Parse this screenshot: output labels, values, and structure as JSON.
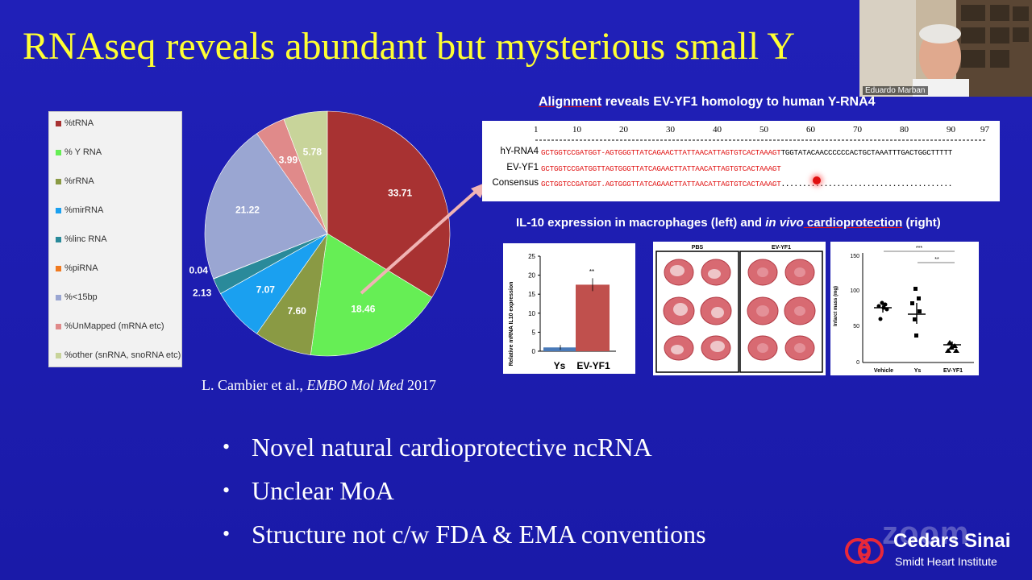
{
  "slide": {
    "title": "RNAseq reveals abundant but mysterious small Y",
    "citation_prefix": "L. Cambier et al., ",
    "citation_journal": "EMBO Mol Med",
    "citation_year": " 2017",
    "bullets": [
      "Novel natural cardioprotective ncRNA",
      "Unclear MoA",
      "Structure not c/w FDA & EMA conventions"
    ]
  },
  "colors": {
    "background": "#1c1cb0",
    "title": "#ffff33",
    "tRNA": "#a83232",
    "YRNA": "#66ee55",
    "rRNA": "#8a9a44",
    "mirRNA": "#1aa0f0",
    "lincRNA": "#2a8a9a",
    "piRNA": "#f07a20",
    "lt15bp": "#9aa6d2",
    "unmapped": "#e08a8a",
    "other": "#c8d49a"
  },
  "chart_data": {
    "type": "pie",
    "title": "",
    "legend_placement": "left",
    "slices": [
      {
        "name": "%tRNA",
        "value": 33.71,
        "label": "33.71",
        "color": "#a83232"
      },
      {
        "name": "% Y RNA",
        "value": 18.46,
        "label": "18.46",
        "color": "#66ee55"
      },
      {
        "name": "%rRNA",
        "value": 7.6,
        "label": "7.60",
        "color": "#8a9a44"
      },
      {
        "name": "%mirRNA",
        "value": 7.07,
        "label": "7.07",
        "color": "#1aa0f0"
      },
      {
        "name": "%linc RNA",
        "value": 2.13,
        "label": "2.13",
        "color": "#2a8a9a"
      },
      {
        "name": "%piRNA",
        "value": 0.04,
        "label": "0.04",
        "color": "#f07a20"
      },
      {
        "name": "%<15bp",
        "value": 21.22,
        "label": "21.22",
        "color": "#9aa6d2"
      },
      {
        "name": "%UnMapped (mRNA etc)",
        "value": 3.99,
        "label": "3.99",
        "color": "#e08a8a"
      },
      {
        "name": "%other (snRNA, snoRNA etc)",
        "value": 5.78,
        "label": "5.78",
        "color": "#c8d49a"
      }
    ]
  },
  "alignment": {
    "title_word": "Alignment",
    "title_rest": " reveals EV-YF1 homology to human Y-RNA4",
    "ruler": [
      "1",
      "10",
      "20",
      "30",
      "40",
      "50",
      "60",
      "70",
      "80",
      "90",
      "97"
    ],
    "rows": [
      {
        "label": "hY-RNA4",
        "red": "GCTGGTCCGATGGT-AGTGGGTTATCAGAACTTATTAACATTAGTGTCACTAAAGT",
        "black": "TGGTATACAACCCCCCACTGCTAAATTTGACTGGCTTTTT"
      },
      {
        "label": "EV-YF1",
        "red": "GCTGGTCCGATGGTTAGTGGGTTATCAGAACTTATTAACATTAGTGTCACTAAAGT",
        "black": ""
      },
      {
        "label": "Consensus",
        "red": "GCTGGTCCGATGGT.AGTGGGTTATCAGAACTTATTAACATTAGTGTCACTAAAGT",
        "black": "........................................"
      }
    ]
  },
  "il10": {
    "title_a": "IL-10 expression in macrophages (left) and ",
    "title_b": "in vivo",
    "title_c": " cardioprotection",
    "title_d": " (right)",
    "bar_chart": {
      "ylabel": "Relative mRNA IL10 expression",
      "yticks": [
        "25",
        "20",
        "15",
        "10",
        "5",
        "0"
      ],
      "categories": [
        "Ys",
        "EV-YF1"
      ],
      "values": [
        1,
        17.5
      ],
      "ylim": [
        0,
        25
      ],
      "significance": "**"
    },
    "hearts": {
      "labels": [
        "PBS",
        "EV-YF1"
      ]
    },
    "scatter": {
      "ylabel": "Infarct mass (mg)",
      "yticks": [
        "150",
        "100",
        "50",
        "0"
      ],
      "categories": [
        "Vehicle",
        "Ys",
        "EV-YF1"
      ],
      "sig_top": "***",
      "sig_bottom": "**"
    }
  },
  "video": {
    "speaker_name": "Eduardo Marban"
  },
  "branding": {
    "zoom_watermark": "zoom",
    "org_name": "Cedars Sinai",
    "org_sub": "Smidt Heart Institute"
  }
}
